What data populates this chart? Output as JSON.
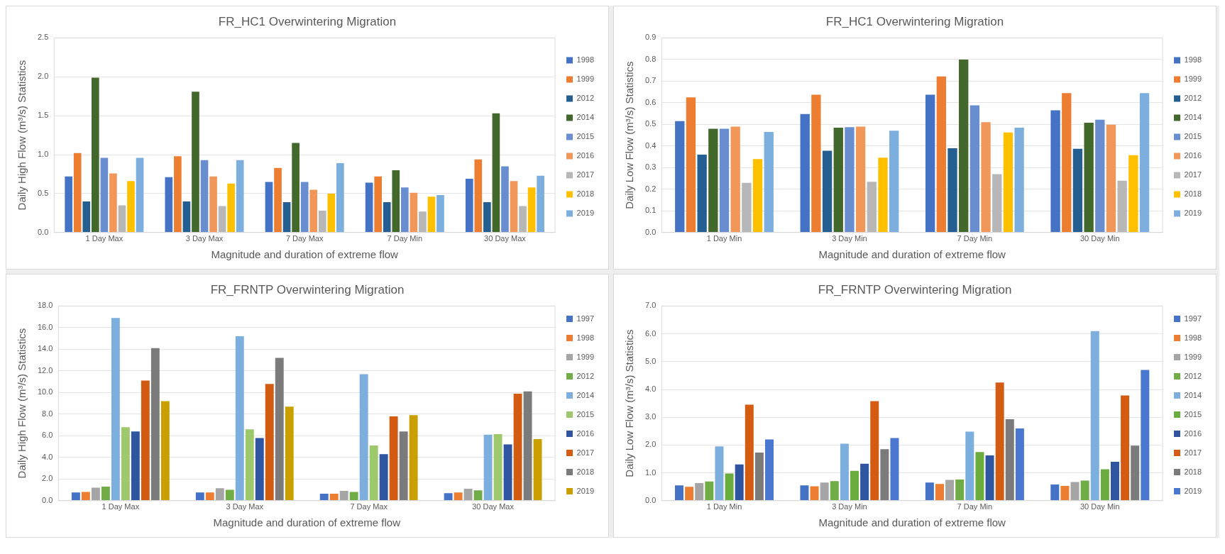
{
  "chart_data": [
    {
      "type": "bar",
      "title": "FR_HC1 Overwintering Migration",
      "xlabel": "Magnitude and duration of extreme flow",
      "ylabel": "Daily High Flow (m³/s) Statistics",
      "categories": [
        "1 Day Max",
        "3 Day Max",
        "7 Day Max",
        "7 Day Min",
        "30 Day Max"
      ],
      "series": [
        {
          "name": "1998",
          "color": "#4472c4",
          "values": [
            0.72,
            0.71,
            0.65,
            0.64,
            0.69
          ]
        },
        {
          "name": "1999",
          "color": "#ed7d31",
          "values": [
            1.02,
            0.98,
            0.83,
            0.72,
            0.94
          ]
        },
        {
          "name": "2012",
          "color": "#255e91",
          "values": [
            0.4,
            0.4,
            0.39,
            0.39,
            0.39
          ]
        },
        {
          "name": "2014",
          "color": "#43682b",
          "values": [
            1.99,
            1.81,
            1.15,
            0.8,
            1.53
          ]
        },
        {
          "name": "2015",
          "color": "#698ed0",
          "values": [
            0.96,
            0.93,
            0.65,
            0.58,
            0.85
          ]
        },
        {
          "name": "2016",
          "color": "#f1975a",
          "values": [
            0.76,
            0.72,
            0.55,
            0.51,
            0.66
          ]
        },
        {
          "name": "2017",
          "color": "#b7b7b7",
          "values": [
            0.35,
            0.34,
            0.28,
            0.27,
            0.34
          ]
        },
        {
          "name": "2018",
          "color": "#ffc000",
          "values": [
            0.66,
            0.63,
            0.5,
            0.46,
            0.58
          ]
        },
        {
          "name": "2019",
          "color": "#7cafdd",
          "values": [
            0.96,
            0.93,
            0.89,
            0.48,
            0.73
          ]
        }
      ],
      "ylim": [
        0,
        2.5
      ],
      "yticks": [
        {
          "value": 0,
          "label": "0.0"
        },
        {
          "value": 0.5,
          "label": "0.5"
        },
        {
          "value": 1,
          "label": "1.0"
        },
        {
          "value": 1.5,
          "label": "1.5"
        },
        {
          "value": 2,
          "label": "2.0"
        },
        {
          "value": 2.5,
          "label": "2.5"
        }
      ],
      "grid": "y",
      "legend": "right"
    },
    {
      "type": "bar",
      "title": "FR_HC1 Overwintering Migration",
      "xlabel": "Magnitude and duration of extreme flow",
      "ylabel": "Daily Low Flow (m³/s) Statistics",
      "categories": [
        "1 Day Min",
        "3 Day Min",
        "7 Day Min",
        "30 Day Min"
      ],
      "series": [
        {
          "name": "1998",
          "color": "#4472c4",
          "values": [
            0.515,
            0.548,
            0.637,
            0.565
          ]
        },
        {
          "name": "1999",
          "color": "#ed7d31",
          "values": [
            0.625,
            0.637,
            0.722,
            0.645
          ]
        },
        {
          "name": "2012",
          "color": "#255e91",
          "values": [
            0.36,
            0.378,
            0.39,
            0.387
          ]
        },
        {
          "name": "2014",
          "color": "#43682b",
          "values": [
            0.48,
            0.485,
            0.8,
            0.508
          ]
        },
        {
          "name": "2015",
          "color": "#698ed0",
          "values": [
            0.48,
            0.487,
            0.588,
            0.522
          ]
        },
        {
          "name": "2016",
          "color": "#f1975a",
          "values": [
            0.49,
            0.49,
            0.51,
            0.499
          ]
        },
        {
          "name": "2017",
          "color": "#b7b7b7",
          "values": [
            0.23,
            0.235,
            0.27,
            0.24
          ]
        },
        {
          "name": "2018",
          "color": "#ffc000",
          "values": [
            0.34,
            0.346,
            0.463,
            0.358
          ]
        },
        {
          "name": "2019",
          "color": "#7cafdd",
          "values": [
            0.465,
            0.471,
            0.485,
            0.645
          ]
        }
      ],
      "ylim": [
        0,
        0.9
      ],
      "yticks": [
        {
          "value": 0,
          "label": "0.0"
        },
        0.1,
        0.2,
        0.3,
        0.4,
        0.5,
        0.6,
        0.7,
        0.8,
        0.9
      ],
      "grid": "y",
      "legend": "right"
    },
    {
      "type": "bar",
      "title": "FR_FRNTP Overwintering Migration",
      "xlabel": "Magnitude and duration of extreme flow",
      "ylabel": "Daily High Flow (m³/s) Statistics",
      "categories": [
        "1 Day Max",
        "3 Day Max",
        "7 Day Max",
        "30 Day Max"
      ],
      "series": [
        {
          "name": "1997",
          "color": "#4472c4",
          "values": [
            0.75,
            0.75,
            0.65,
            0.7
          ]
        },
        {
          "name": "1998",
          "color": "#ed7d31",
          "values": [
            0.8,
            0.75,
            0.65,
            0.75
          ]
        },
        {
          "name": "1999",
          "color": "#a5a5a5",
          "values": [
            1.2,
            1.15,
            0.9,
            1.1
          ]
        },
        {
          "name": "2012",
          "color": "#70ad47",
          "values": [
            1.3,
            1.0,
            0.8,
            0.95
          ]
        },
        {
          "name": "2014",
          "color": "#7cafdd",
          "values": [
            16.9,
            15.2,
            11.7,
            6.1
          ]
        },
        {
          "name": "2015",
          "color": "#9dc86b",
          "values": [
            6.8,
            6.6,
            5.1,
            6.15
          ]
        },
        {
          "name": "2016",
          "color": "#2f55a0",
          "values": [
            6.4,
            5.8,
            4.3,
            5.2
          ]
        },
        {
          "name": "2017",
          "color": "#d35b12",
          "values": [
            11.1,
            10.8,
            7.8,
            9.9
          ]
        },
        {
          "name": "2018",
          "color": "#7b7b7b",
          "values": [
            14.1,
            13.2,
            6.4,
            10.1
          ]
        },
        {
          "name": "2019",
          "color": "#c9a000",
          "values": [
            9.2,
            8.7,
            7.9,
            5.7
          ]
        }
      ],
      "ylim": [
        0,
        18
      ],
      "yticks": [
        {
          "value": 0,
          "label": "0.0"
        },
        {
          "value": 2,
          "label": "2.0"
        },
        {
          "value": 4,
          "label": "4.0"
        },
        {
          "value": 6,
          "label": "6.0"
        },
        {
          "value": 8,
          "label": "8.0"
        },
        {
          "value": 10,
          "label": "10.0"
        },
        {
          "value": 12,
          "label": "12.0"
        },
        {
          "value": 14,
          "label": "14.0"
        },
        {
          "value": 16,
          "label": "16.0"
        },
        {
          "value": 18,
          "label": "18.0"
        }
      ],
      "grid": "y",
      "legend": "right"
    },
    {
      "type": "bar",
      "title": "FR_FRNTP Overwintering Migration",
      "xlabel": "Magnitude and duration of extreme flow",
      "ylabel": "Daily Low Flow (m³/s) Statistics",
      "categories": [
        "1 Day Min",
        "3 Day Min",
        "7 Day Min",
        "30 Day Min"
      ],
      "series": [
        {
          "name": "1997",
          "color": "#4472c4",
          "values": [
            0.55,
            0.55,
            0.65,
            0.58
          ]
        },
        {
          "name": "1998",
          "color": "#ed7d31",
          "values": [
            0.5,
            0.52,
            0.6,
            0.53
          ]
        },
        {
          "name": "1999",
          "color": "#a5a5a5",
          "values": [
            0.63,
            0.65,
            0.75,
            0.67
          ]
        },
        {
          "name": "2012",
          "color": "#70ad47",
          "values": [
            0.69,
            0.7,
            0.76,
            0.72
          ]
        },
        {
          "name": "2014",
          "color": "#7cafdd",
          "values": [
            1.95,
            2.05,
            2.48,
            6.1
          ]
        },
        {
          "name": "2015",
          "color": "#6aac3e",
          "values": [
            0.98,
            1.07,
            1.75,
            1.13
          ]
        },
        {
          "name": "2016",
          "color": "#2f55a0",
          "values": [
            1.3,
            1.33,
            1.63,
            1.4
          ]
        },
        {
          "name": "2017",
          "color": "#d35b12",
          "values": [
            3.45,
            3.58,
            4.25,
            3.78
          ]
        },
        {
          "name": "2018",
          "color": "#7b7b7b",
          "values": [
            1.73,
            1.85,
            2.93,
            1.98
          ]
        },
        {
          "name": "2019",
          "color": "#4a78d0",
          "values": [
            2.2,
            2.25,
            2.6,
            4.7
          ]
        }
      ],
      "ylim": [
        0,
        7
      ],
      "yticks": [
        {
          "value": 0,
          "label": "0.0"
        },
        {
          "value": 1,
          "label": "1.0"
        },
        {
          "value": 2,
          "label": "2.0"
        },
        {
          "value": 3,
          "label": "3.0"
        },
        {
          "value": 4,
          "label": "4.0"
        },
        {
          "value": 5,
          "label": "5.0"
        },
        {
          "value": 6,
          "label": "6.0"
        },
        {
          "value": 7,
          "label": "7.0"
        }
      ],
      "grid": "y",
      "legend": "right"
    }
  ]
}
